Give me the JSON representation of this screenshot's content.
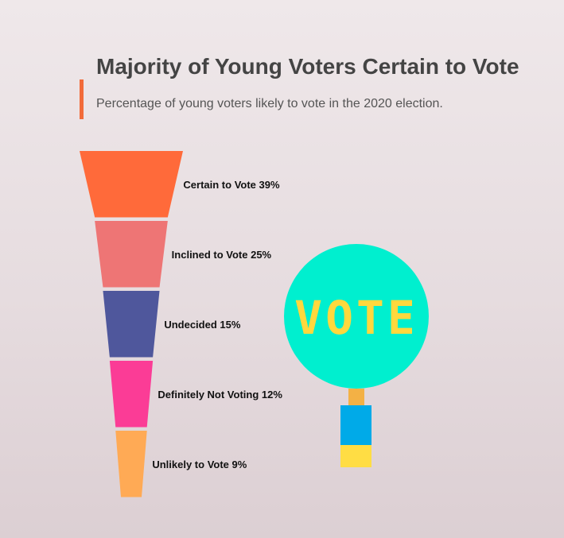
{
  "title": "Majority of Young Voters Certain to Vote",
  "subtitle": "Percentage of young voters likely to vote in the 2020 election.",
  "colors": {
    "accent": "#f26b3a",
    "label_text": "#111111"
  },
  "chart_data": {
    "type": "funnel",
    "title": "Majority of Young Voters Certain to Vote",
    "subtitle": "Percentage of young voters likely to vote in the 2020 election.",
    "categories": [
      "Certain to Vote",
      "Inclined to Vote",
      "Undecided",
      "Definitely Not Voting",
      "Unlikely to Vote"
    ],
    "values": [
      39,
      25,
      15,
      12,
      9
    ],
    "unit": "%",
    "labels": [
      "Certain to Vote 39%",
      "Inclined to Vote 25%",
      "Undecided 15%",
      "Definitely Not Voting 12%",
      "Unlikely to Vote 9%"
    ],
    "colors": [
      "#ff6a3a",
      "#ee7575",
      "#4f579c",
      "#fb3c96",
      "#ffaa55"
    ]
  },
  "illustration": {
    "text": "VOTE",
    "colors": {
      "circle": "#00efcf",
      "text": "#ffd83d",
      "stick": "#f3b145",
      "handle": "#00aae8",
      "handle_base": "#ffdd44"
    }
  }
}
